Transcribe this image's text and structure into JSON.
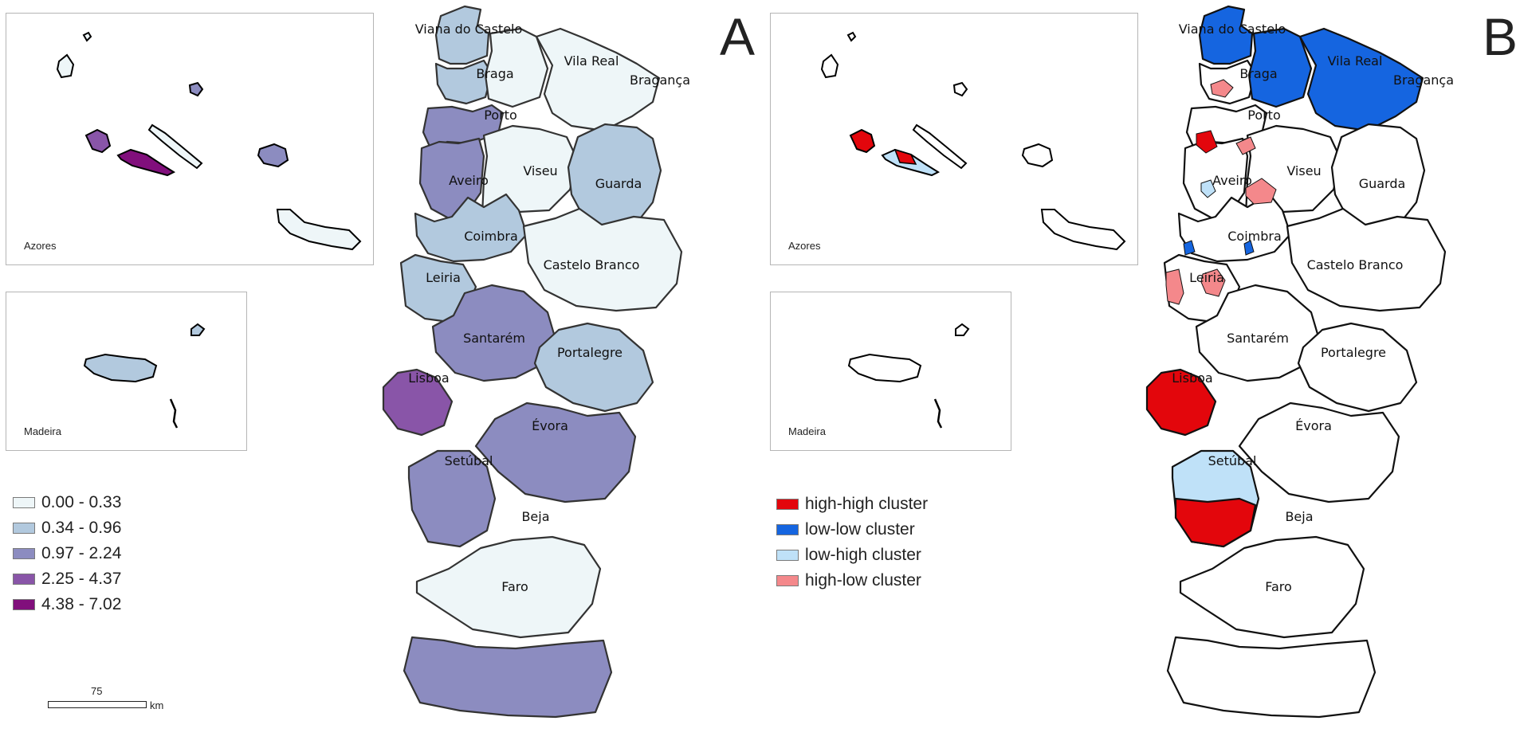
{
  "panel_a": {
    "letter": "A",
    "azores_label": "Azores",
    "madeira_label": "Madeira",
    "legend": [
      {
        "label": "0.00 - 0.33",
        "color": "#eef6f8"
      },
      {
        "label": "0.34 - 0.96",
        "color": "#b2c9de"
      },
      {
        "label": "0.97 - 2.24",
        "color": "#8c8cc0"
      },
      {
        "label": "2.25 - 4.37",
        "color": "#8955a8"
      },
      {
        "label": "4.38 - 7.02",
        "color": "#810f7c"
      }
    ],
    "scale": {
      "value": "75",
      "unit": "km"
    }
  },
  "panel_b": {
    "letter": "B",
    "azores_label": "Azores",
    "madeira_label": "Madeira",
    "legend": [
      {
        "label": "high-high cluster",
        "color": "#e3060c"
      },
      {
        "label": "low-low cluster",
        "color": "#1565e0"
      },
      {
        "label": "low-high cluster",
        "color": "#bfe1f8"
      },
      {
        "label": "high-low cluster",
        "color": "#f4888b"
      }
    ]
  },
  "districts": [
    "Viana do Castelo",
    "Vila Real",
    "Braga",
    "Bragança",
    "Porto",
    "Viseu",
    "Aveiro",
    "Guarda",
    "Coimbra",
    "Castelo Branco",
    "Leiria",
    "Santarém",
    "Portalegre",
    "Lisboa",
    "Évora",
    "Setúbal",
    "Beja",
    "Faro"
  ]
}
